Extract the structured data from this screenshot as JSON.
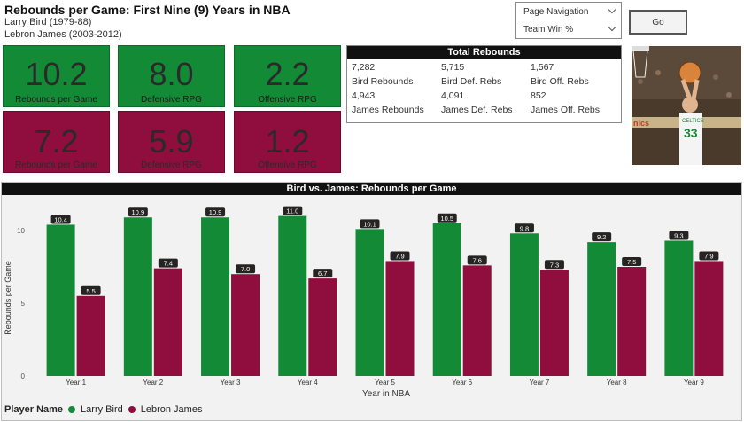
{
  "header": {
    "title": "Rebounds per Game: First Nine (9) Years in NBA",
    "player1": "Larry Bird (1979-88)",
    "player2": "Lebron James (2003-2012)"
  },
  "controls": {
    "nav_label": "Page Navigation",
    "nav_selected": "Team Win %",
    "go_label": "Go"
  },
  "kpis": {
    "bird": [
      {
        "value": "10.2",
        "label": "Rebounds per Game"
      },
      {
        "value": "8.0",
        "label": "Defensive RPG"
      },
      {
        "value": "2.2",
        "label": "Offensive RPG"
      }
    ],
    "james": [
      {
        "value": "7.2",
        "label": "Rebounds per Game"
      },
      {
        "value": "5.9",
        "label": "Defensive RPG"
      },
      {
        "value": "1.2",
        "label": "Offensive RPG"
      }
    ]
  },
  "totals": {
    "title": "Total Rebounds",
    "cells": [
      {
        "value": "7,282",
        "label": "Bird Rebounds"
      },
      {
        "value": "5,715",
        "label": "Bird Def. Rebs"
      },
      {
        "value": "1,567",
        "label": "Bird Off. Rebs"
      },
      {
        "value": "4,943",
        "label": "James Rebounds"
      },
      {
        "value": "4,091",
        "label": "James Def. Rebs"
      },
      {
        "value": "852",
        "label": "James Off. Rebs"
      }
    ]
  },
  "photo": {
    "jersey_text": "CELTICS",
    "jersey_number": "33",
    "banner_text": "nics"
  },
  "colors": {
    "bird": "#138a36",
    "james": "#8f0e3d"
  },
  "chart_data": {
    "type": "bar",
    "title": "Bird vs. James: Rebounds per Game",
    "xlabel": "Year in NBA",
    "ylabel": "Rebounds per Game",
    "ylim": [
      0,
      12
    ],
    "yticks": [
      0,
      5,
      10
    ],
    "categories": [
      "Year 1",
      "Year 2",
      "Year 3",
      "Year 4",
      "Year 5",
      "Year 6",
      "Year 7",
      "Year 8",
      "Year 9"
    ],
    "series": [
      {
        "name": "Larry Bird",
        "color": "#138a36",
        "values": [
          10.4,
          10.9,
          10.9,
          11.0,
          10.1,
          10.5,
          9.8,
          9.2,
          9.3
        ]
      },
      {
        "name": "Lebron James",
        "color": "#8f0e3d",
        "values": [
          5.5,
          7.4,
          7.0,
          6.7,
          7.9,
          7.6,
          7.3,
          7.5,
          7.9
        ]
      }
    ],
    "legend_title": "Player Name",
    "legend_position": "bottom-left"
  }
}
